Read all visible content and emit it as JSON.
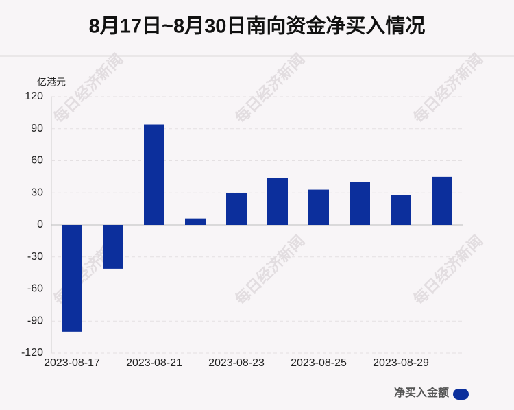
{
  "chart_data": {
    "type": "bar",
    "title": "8月17日~8月30日南向资金净买入情况",
    "y_unit": "亿港元",
    "watermark": "每日经济新闻",
    "categories": [
      "2023-08-17",
      null,
      "2023-08-21",
      null,
      "2023-08-23",
      null,
      "2023-08-25",
      null,
      "2023-08-29",
      null
    ],
    "series": [
      {
        "name": "净买入金额",
        "color": "#0c2f9c",
        "values": [
          -100,
          -41,
          94,
          6,
          30,
          44,
          33,
          40,
          28,
          45
        ]
      }
    ],
    "ylim": [
      -120,
      120
    ],
    "yticks": [
      -120,
      -90,
      -60,
      -30,
      0,
      30,
      60,
      90,
      120
    ],
    "grid": true,
    "legend": "bottom-right"
  }
}
